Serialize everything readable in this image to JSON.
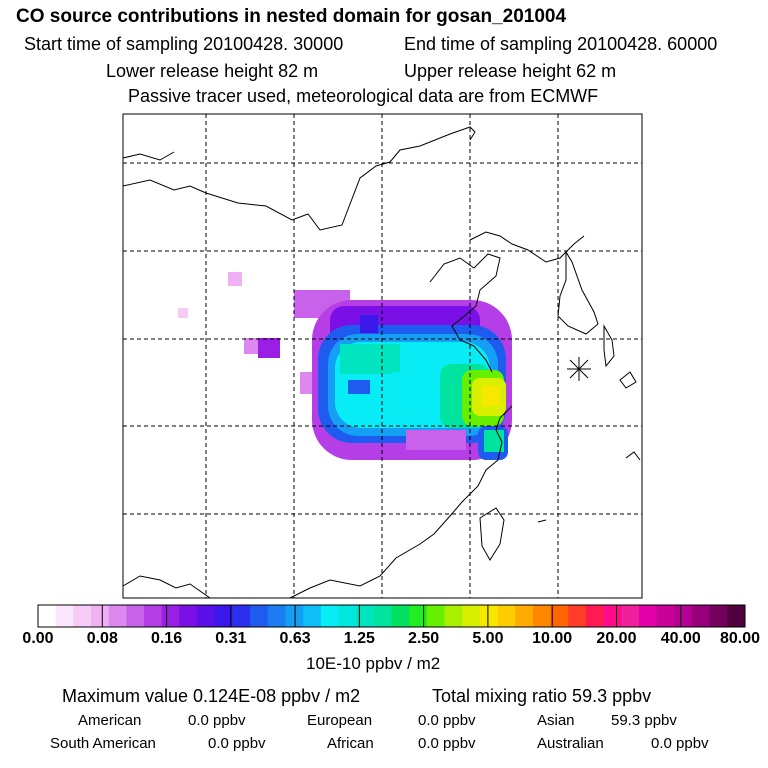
{
  "header": {
    "title": "CO  source contributions in nested domain for gosan_201004",
    "start": "Start time of sampling 20100428. 30000",
    "end": "End time of sampling 20100428. 60000",
    "lower": "Lower release height   82 m",
    "upper": "Upper release height   62 m",
    "note": "Passive tracer used, meteorological data are from ECMWF"
  },
  "chart_data": {
    "type": "heatmap",
    "title": "CO  source contributions in nested domain for gosan_201004",
    "colorbar": {
      "tick_labels": [
        "0.00",
        "0.08",
        "0.16",
        "0.31",
        "0.63",
        "1.25",
        "2.50",
        "5.00",
        "10.00",
        "20.00",
        "40.00",
        "80.00"
      ],
      "unit_label": "10E-10 ppbv / m2",
      "colors": [
        "#ffffff",
        "#fbe6fb",
        "#f6ccf6",
        "#f0b0f2",
        "#dc88ee",
        "#c862ea",
        "#b53ee6",
        "#9a1ee4",
        "#7a10e6",
        "#5a10e8",
        "#3a18ea",
        "#2a30ee",
        "#1e5cf0",
        "#1a7ef2",
        "#149ef4",
        "#0ebef6",
        "#08ecf6",
        "#00e8dc",
        "#00e4c0",
        "#00e4a0",
        "#00e060",
        "#22ec22",
        "#66f000",
        "#a8f000",
        "#d8f000",
        "#f8e800",
        "#ffcc00",
        "#ffaa00",
        "#ff8800",
        "#ff6600",
        "#ff3c2a",
        "#ff1a52",
        "#ff0a8a",
        "#f0209a",
        "#e400a8",
        "#c80098",
        "#b40094",
        "#98007a",
        "#74005c",
        "#4e003c"
      ]
    },
    "receptor_marker": "gosan",
    "summary": {
      "maximum": "Maximum value  0.124E-08 ppbv / m2",
      "total": "Total mixing ratio       59.3 ppbv"
    },
    "regions": [
      {
        "name": "American",
        "value": "0.0 ppbv"
      },
      {
        "name": "European",
        "value": "0.0 ppbv"
      },
      {
        "name": "Asian",
        "value": "59.3 ppbv"
      },
      {
        "name": "South American",
        "value": "0.0 ppbv"
      },
      {
        "name": "African",
        "value": "0.0 ppbv"
      },
      {
        "name": "Australian",
        "value": "0.0 ppbv"
      }
    ]
  }
}
